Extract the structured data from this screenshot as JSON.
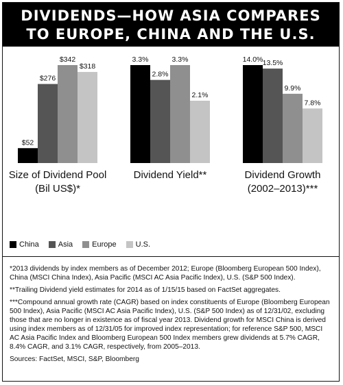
{
  "header": {
    "title_line1": "DIVIDENDS—HOW ASIA COMPARES",
    "title_line2": "TO EUROPE, CHINA AND THE U.S."
  },
  "colors": {
    "China": "#000000",
    "Asia": "#555555",
    "Europe": "#8f8f8f",
    "U.S.": "#c4c4c4"
  },
  "legend": {
    "items": [
      "China",
      "Asia",
      "Europe",
      "U.S."
    ]
  },
  "chart_data": [
    {
      "type": "bar",
      "title": "Size of Dividend Pool",
      "subtitle": "(Bil US$)*",
      "categories": [
        "China",
        "Asia",
        "Europe",
        "U.S."
      ],
      "values": [
        52,
        276,
        342,
        318
      ],
      "labels": [
        "$52",
        "$276",
        "$342",
        "$318"
      ],
      "ylim": [
        0,
        342
      ]
    },
    {
      "type": "bar",
      "title": "Dividend Yield**",
      "subtitle": "",
      "categories": [
        "China",
        "Asia",
        "Europe",
        "U.S."
      ],
      "values": [
        3.3,
        2.8,
        3.3,
        2.1
      ],
      "labels": [
        "3.3%",
        "2.8%",
        "3.3%",
        "2.1%"
      ],
      "ylim": [
        0,
        3.3
      ]
    },
    {
      "type": "bar",
      "title": "Dividend Growth",
      "subtitle": "(2002–2013)***",
      "categories": [
        "China",
        "Asia",
        "Europe",
        "U.S."
      ],
      "values": [
        14.0,
        13.5,
        9.9,
        7.8
      ],
      "labels": [
        "14.0%",
        "13.5%",
        "9.9%",
        "7.8%"
      ],
      "ylim": [
        0,
        14.0
      ]
    }
  ],
  "notes": {
    "note1": "*2013 dividends by index members as of December 2012; Europe (Bloomberg European 500 Index), China (MSCI China Index), Asia Pacific (MSCI AC Asia Pacific Index), U.S. (S&P 500 Index).",
    "note2": "**Trailing Dividend yield estimates for 2014 as of 1/15/15 based on FactSet aggregates.",
    "note3": "***Compound annual growth rate (CAGR) based on index constituents of Europe (Bloomberg European 500 Index), Asia Pacific (MSCI AC Asia Pacific Index), U.S. (S&P 500 Index) as of 12/31/02, excluding those that are no longer in existence as of fiscal year 2013. Dividend growth for MSCI China is derived using index members as of 12/31/05 for improved index representation; for reference S&P 500, MSCI AC Asia Pacific Index and Bloomberg European 500 Index members grew dividends at 5.7% CAGR, 8.4% CAGR, and 3.1% CAGR, respectively, from 2005–2013.",
    "sources": "Sources: FactSet, MSCI, S&P, Bloomberg"
  }
}
